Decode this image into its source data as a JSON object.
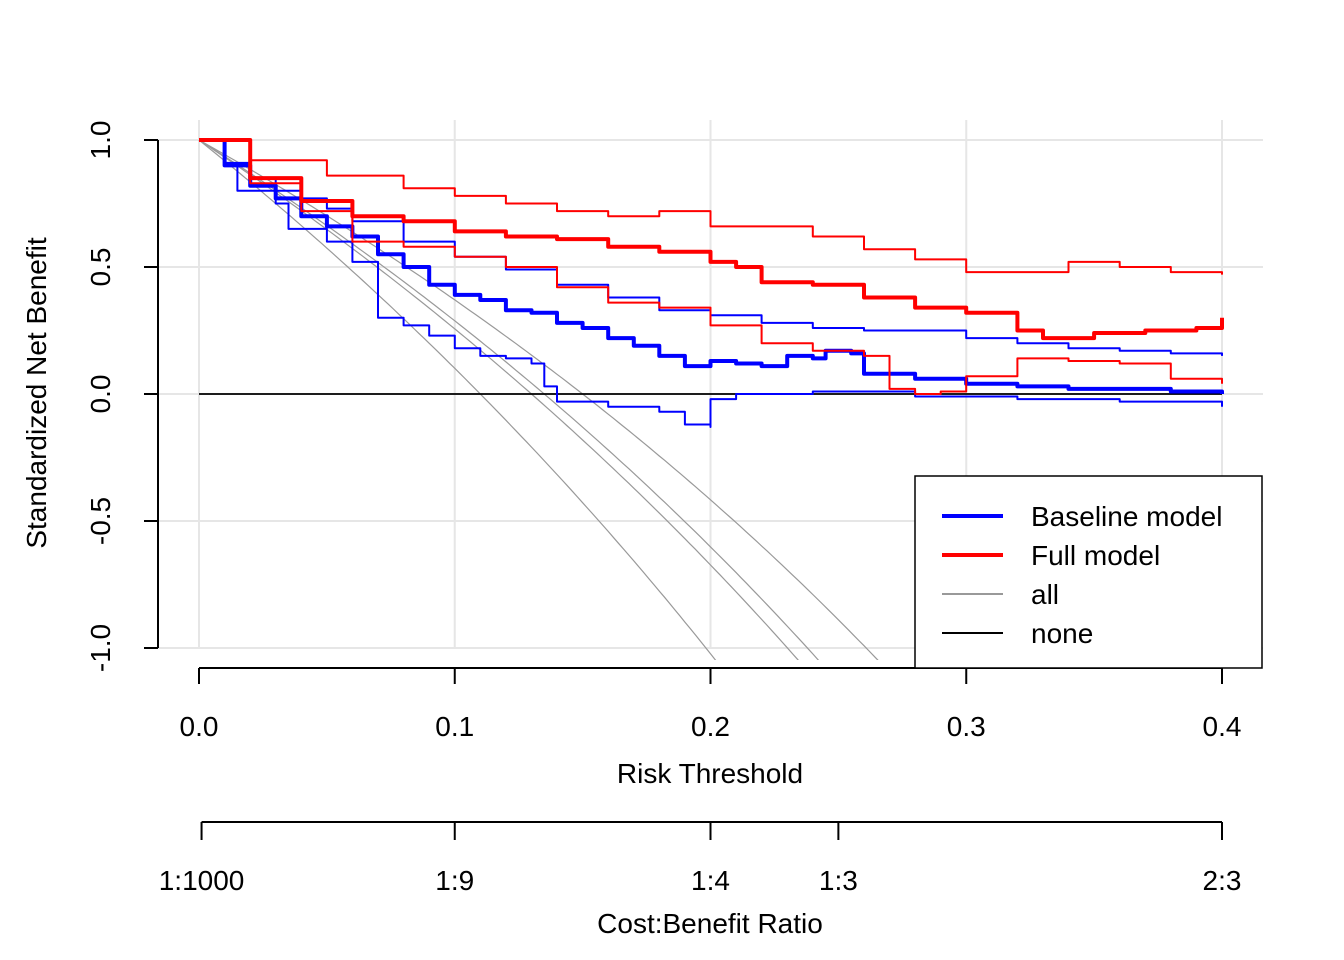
{
  "chart_data": {
    "type": "line",
    "title": "",
    "xlabel": "Risk Threshold",
    "ylabel": "Standardized Net Benefit",
    "xlim": [
      0,
      0.4
    ],
    "ylim": [
      -1,
      1
    ],
    "x_ticks": [
      0,
      0.1,
      0.2,
      0.3,
      0.4
    ],
    "x_tick_labels": [
      "0.0",
      "0.1",
      "0.2",
      "0.3",
      "0.4"
    ],
    "y_ticks": [
      -1,
      -0.5,
      0,
      0.5,
      1
    ],
    "y_tick_labels": [
      "-1.0",
      "-0.5",
      "0.0",
      "0.5",
      "1.0"
    ],
    "grid": true,
    "secondary_axis": {
      "label": "Cost:Benefit Ratio",
      "ticks": [
        0.001,
        0.1,
        0.2,
        0.25,
        0.4
      ],
      "tick_labels": [
        "1:1000",
        "1:9",
        "1:4",
        "1:3",
        "2:3"
      ]
    },
    "legend": {
      "position": "bottom-right",
      "entries": [
        {
          "label": "Baseline model",
          "color": "#0000ff",
          "style": "thick"
        },
        {
          "label": "Full model",
          "color": "#ff0000",
          "style": "thick"
        },
        {
          "label": "all",
          "color": "#999999",
          "style": "thin"
        },
        {
          "label": "none",
          "color": "#000000",
          "style": "thin"
        }
      ]
    },
    "series": [
      {
        "name": "Baseline model",
        "role": "estimate",
        "color": "#0000ff",
        "x": [
          0,
          0.01,
          0.02,
          0.03,
          0.04,
          0.05,
          0.06,
          0.07,
          0.08,
          0.09,
          0.1,
          0.11,
          0.12,
          0.13,
          0.14,
          0.15,
          0.16,
          0.17,
          0.18,
          0.19,
          0.2,
          0.21,
          0.22,
          0.23,
          0.24,
          0.245,
          0.255,
          0.26,
          0.28,
          0.3,
          0.32,
          0.34,
          0.36,
          0.38,
          0.4
        ],
        "y": [
          1.0,
          0.9,
          0.82,
          0.77,
          0.7,
          0.66,
          0.62,
          0.55,
          0.5,
          0.43,
          0.39,
          0.37,
          0.33,
          0.32,
          0.28,
          0.26,
          0.22,
          0.19,
          0.15,
          0.11,
          0.13,
          0.12,
          0.11,
          0.15,
          0.14,
          0.17,
          0.16,
          0.08,
          0.06,
          0.04,
          0.03,
          0.02,
          0.02,
          0.01,
          0.0
        ]
      },
      {
        "name": "Baseline model",
        "role": "upper interval",
        "color": "#0000ff",
        "x": [
          0,
          0.01,
          0.02,
          0.03,
          0.04,
          0.05,
          0.06,
          0.08,
          0.1,
          0.12,
          0.14,
          0.16,
          0.18,
          0.2,
          0.22,
          0.24,
          0.26,
          0.28,
          0.3,
          0.32,
          0.34,
          0.36,
          0.38,
          0.4
        ],
        "y": [
          1.0,
          0.91,
          0.85,
          0.8,
          0.77,
          0.73,
          0.68,
          0.6,
          0.54,
          0.49,
          0.43,
          0.38,
          0.33,
          0.31,
          0.28,
          0.26,
          0.25,
          0.25,
          0.22,
          0.2,
          0.18,
          0.17,
          0.16,
          0.15
        ]
      },
      {
        "name": "Baseline model",
        "role": "lower interval",
        "color": "#0000ff",
        "x": [
          0,
          0.01,
          0.015,
          0.03,
          0.035,
          0.05,
          0.06,
          0.07,
          0.07,
          0.08,
          0.09,
          0.1,
          0.11,
          0.12,
          0.13,
          0.135,
          0.135,
          0.14,
          0.16,
          0.18,
          0.19,
          0.2,
          0.2,
          0.21,
          0.24,
          0.24,
          0.28,
          0.32,
          0.36,
          0.4
        ],
        "y": [
          1.0,
          0.9,
          0.8,
          0.75,
          0.65,
          0.6,
          0.52,
          0.43,
          0.3,
          0.27,
          0.23,
          0.18,
          0.15,
          0.14,
          0.12,
          0.1,
          0.03,
          -0.03,
          -0.05,
          -0.07,
          -0.12,
          -0.13,
          -0.02,
          0.0,
          0.0,
          0.01,
          -0.01,
          -0.02,
          -0.03,
          -0.05
        ]
      },
      {
        "name": "Full model",
        "role": "estimate",
        "color": "#ff0000",
        "x": [
          0,
          0.02,
          0.04,
          0.06,
          0.08,
          0.1,
          0.12,
          0.14,
          0.16,
          0.18,
          0.2,
          0.21,
          0.22,
          0.24,
          0.26,
          0.28,
          0.3,
          0.32,
          0.33,
          0.35,
          0.37,
          0.39,
          0.4
        ],
        "y": [
          1.0,
          0.85,
          0.76,
          0.7,
          0.68,
          0.64,
          0.62,
          0.61,
          0.58,
          0.56,
          0.52,
          0.5,
          0.44,
          0.43,
          0.38,
          0.34,
          0.32,
          0.25,
          0.22,
          0.24,
          0.25,
          0.26,
          0.3
        ]
      },
      {
        "name": "Full model",
        "role": "upper interval",
        "color": "#ff0000",
        "x": [
          0,
          0.02,
          0.05,
          0.08,
          0.1,
          0.12,
          0.14,
          0.16,
          0.18,
          0.2,
          0.22,
          0.24,
          0.26,
          0.28,
          0.3,
          0.32,
          0.34,
          0.36,
          0.38,
          0.4
        ],
        "y": [
          1.0,
          0.92,
          0.86,
          0.81,
          0.78,
          0.75,
          0.72,
          0.7,
          0.72,
          0.66,
          0.66,
          0.62,
          0.57,
          0.53,
          0.48,
          0.48,
          0.52,
          0.5,
          0.48,
          0.47
        ]
      },
      {
        "name": "Full model",
        "role": "lower interval",
        "color": "#ff0000",
        "x": [
          0,
          0.02,
          0.04,
          0.06,
          0.08,
          0.1,
          0.12,
          0.14,
          0.16,
          0.18,
          0.2,
          0.22,
          0.24,
          0.26,
          0.27,
          0.28,
          0.29,
          0.3,
          0.32,
          0.34,
          0.36,
          0.38,
          0.4
        ],
        "y": [
          1.0,
          0.83,
          0.72,
          0.6,
          0.58,
          0.54,
          0.5,
          0.42,
          0.36,
          0.34,
          0.27,
          0.2,
          0.17,
          0.15,
          0.02,
          0.0,
          0.01,
          0.07,
          0.14,
          0.13,
          0.12,
          0.06,
          0.04
        ]
      },
      {
        "name": "all",
        "role": "reference",
        "color": "#999999",
        "prevalence": 0.11
      },
      {
        "name": "all",
        "role": "reference",
        "color": "#999999",
        "prevalence": 0.13
      },
      {
        "name": "all",
        "role": "reference",
        "color": "#999999",
        "prevalence": 0.135
      },
      {
        "name": "all",
        "role": "reference",
        "color": "#999999",
        "prevalence": 0.15
      },
      {
        "name": "none",
        "role": "reference",
        "color": "#000000",
        "x": [
          0,
          0.4
        ],
        "y": [
          0,
          0
        ]
      }
    ]
  }
}
